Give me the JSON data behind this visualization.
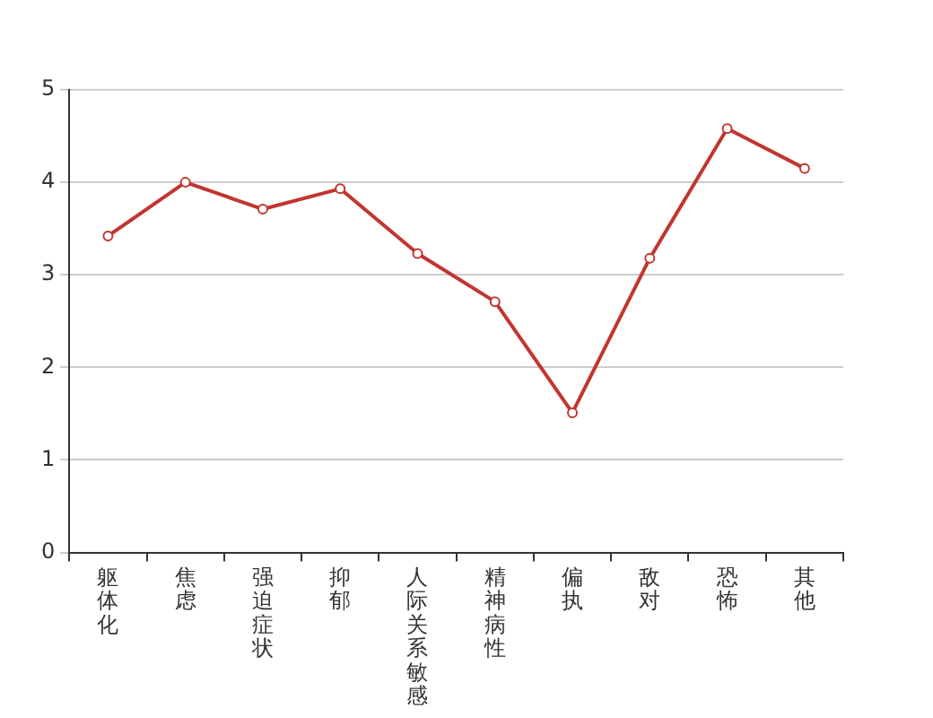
{
  "chart_data": {
    "type": "line",
    "categories": [
      "躯体化",
      "焦虑",
      "强迫症状",
      "抑郁",
      "人际关系敏感",
      "精神病性",
      "偏执",
      "敌对",
      "恐怖",
      "其他"
    ],
    "series": [
      {
        "color": "#c23531",
        "values": [
          3.42,
          4.0,
          3.71,
          3.93,
          3.23,
          2.71,
          1.51,
          3.18,
          4.58,
          4.15
        ]
      }
    ],
    "ylim": [
      0,
      5
    ],
    "yticks": [
      0,
      1,
      2,
      3,
      4,
      5
    ],
    "grid": "y",
    "marker": "circle",
    "line_style": "solid",
    "legend": false
  }
}
